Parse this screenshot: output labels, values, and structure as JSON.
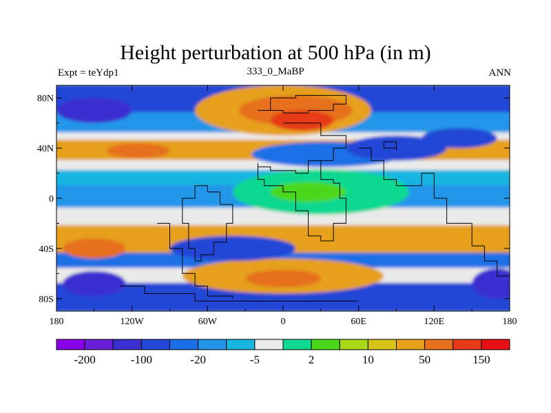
{
  "chart_data": {
    "type": "heatmap",
    "title": "Height perturbation at 500 hPa (in m)",
    "left_string": "Expt = teYdp1",
    "center_string": "333_0_MaBP",
    "right_string": "ANN",
    "x_ticks": [
      {
        "value": -180,
        "label": "180"
      },
      {
        "value": -120,
        "label": "120W"
      },
      {
        "value": -60,
        "label": "60W"
      },
      {
        "value": 0,
        "label": "0"
      },
      {
        "value": 60,
        "label": "60E"
      },
      {
        "value": 120,
        "label": "120E"
      },
      {
        "value": 180,
        "label": "180"
      }
    ],
    "y_ticks": [
      {
        "value": 80,
        "label": "80N"
      },
      {
        "value": 40,
        "label": "40N"
      },
      {
        "value": 0,
        "label": "0"
      },
      {
        "value": -40,
        "label": "40S"
      },
      {
        "value": -80,
        "label": "80S"
      }
    ],
    "xlim": [
      -180,
      180
    ],
    "ylim": [
      -90,
      90
    ],
    "colorbar": {
      "colors": [
        "#8a00e6",
        "#6a1fd8",
        "#3b2fd0",
        "#2347d6",
        "#1b6fe6",
        "#2196e8",
        "#17b6e0",
        "#eaeaea",
        "#10d890",
        "#4bd81a",
        "#a8d818",
        "#d8c418",
        "#e6a01a",
        "#e6701c",
        "#e63a18",
        "#e60f12"
      ],
      "labels": [
        {
          "boundary": 1,
          "text": "-200"
        },
        {
          "boundary": 3,
          "text": "-100"
        },
        {
          "boundary": 5,
          "text": "-20"
        },
        {
          "boundary": 7,
          "text": "-5"
        },
        {
          "boundary": 9,
          "text": "2"
        },
        {
          "boundary": 11,
          "text": "10"
        },
        {
          "boundary": 13,
          "text": "50"
        },
        {
          "boundary": 15,
          "text": "150"
        }
      ]
    },
    "bands": [
      {
        "lat_top": 90,
        "lat_bot": 68,
        "level": 3
      },
      {
        "lat_top": 68,
        "lat_bot": 52,
        "level": 5
      },
      {
        "lat_top": 52,
        "lat_bot": 46,
        "level": 7
      },
      {
        "lat_top": 46,
        "lat_bot": 30,
        "level": 12
      },
      {
        "lat_top": 30,
        "lat_bot": 22,
        "level": 7
      },
      {
        "lat_top": 22,
        "lat_bot": 10,
        "level": 6
      },
      {
        "lat_top": 10,
        "lat_bot": -8,
        "level": 5
      },
      {
        "lat_top": -8,
        "lat_bot": -22,
        "level": 7
      },
      {
        "lat_top": -22,
        "lat_bot": -44,
        "level": 12
      },
      {
        "lat_top": -44,
        "lat_bot": -56,
        "level": 4
      },
      {
        "lat_top": -56,
        "lat_bot": -68,
        "level": 7
      },
      {
        "lat_top": -68,
        "lat_bot": -90,
        "level": 3
      }
    ],
    "blobs": [
      {
        "lon": 0,
        "lat": 70,
        "rx": 70,
        "ry": 20,
        "level": 12
      },
      {
        "lon": 10,
        "lat": 70,
        "rx": 45,
        "ry": 12,
        "level": 13
      },
      {
        "lon": 15,
        "lat": 62,
        "rx": 25,
        "ry": 8,
        "level": 14
      },
      {
        "lon": 35,
        "lat": 35,
        "rx": 60,
        "ry": 10,
        "level": 4
      },
      {
        "lon": 90,
        "lat": 40,
        "rx": 40,
        "ry": 10,
        "level": 3
      },
      {
        "lon": -115,
        "lat": 38,
        "rx": 25,
        "ry": 6,
        "level": 13
      },
      {
        "lon": 30,
        "lat": 5,
        "rx": 70,
        "ry": 18,
        "level": 8
      },
      {
        "lon": 20,
        "lat": 5,
        "rx": 30,
        "ry": 8,
        "level": 9
      },
      {
        "lon": 0,
        "lat": -62,
        "rx": 80,
        "ry": 14,
        "level": 12
      },
      {
        "lon": 0,
        "lat": -64,
        "rx": 30,
        "ry": 7,
        "level": 13
      },
      {
        "lon": -150,
        "lat": -40,
        "rx": 25,
        "ry": 8,
        "level": 13
      },
      {
        "lon": -150,
        "lat": -68,
        "rx": 25,
        "ry": 10,
        "level": 2
      },
      {
        "lon": 170,
        "lat": -68,
        "rx": 20,
        "ry": 12,
        "level": 2
      },
      {
        "lon": 140,
        "lat": 48,
        "rx": 30,
        "ry": 8,
        "level": 3
      },
      {
        "lon": -150,
        "lat": 70,
        "rx": 30,
        "ry": 10,
        "level": 2
      },
      {
        "lon": -40,
        "lat": -40,
        "rx": 50,
        "ry": 10,
        "level": 3
      }
    ],
    "coastline_segments": [
      [
        [
          0,
          60
        ],
        [
          30,
          60
        ],
        [
          30,
          50
        ],
        [
          50,
          50
        ],
        [
          50,
          40
        ],
        [
          40,
          30
        ],
        [
          20,
          20
        ],
        [
          10,
          22
        ],
        [
          -10,
          25
        ],
        [
          -20,
          28
        ],
        [
          -20,
          15
        ],
        [
          -15,
          10
        ],
        [
          0,
          5
        ],
        [
          10,
          0
        ],
        [
          10,
          -10
        ],
        [
          20,
          -30
        ],
        [
          30,
          -34
        ],
        [
          40,
          -20
        ],
        [
          50,
          0
        ],
        [
          45,
          12
        ],
        [
          40,
          15
        ],
        [
          30,
          30
        ]
      ],
      [
        [
          60,
          40
        ],
        [
          70,
          30
        ],
        [
          80,
          15
        ],
        [
          90,
          10
        ],
        [
          100,
          10
        ],
        [
          110,
          20
        ],
        [
          120,
          0
        ],
        [
          130,
          -20
        ],
        [
          150,
          -38
        ],
        [
          160,
          -50
        ],
        [
          170,
          -62
        ],
        [
          180,
          -70
        ]
      ],
      [
        [
          -100,
          -20
        ],
        [
          -90,
          -40
        ],
        [
          -80,
          -60
        ],
        [
          -70,
          -70
        ],
        [
          -60,
          -78
        ],
        [
          -40,
          -80
        ]
      ],
      [
        [
          -60,
          5
        ],
        [
          -50,
          -5
        ],
        [
          -40,
          -20
        ],
        [
          -45,
          -35
        ],
        [
          -55,
          -45
        ],
        [
          -65,
          -50
        ],
        [
          -70,
          -40
        ],
        [
          -75,
          -20
        ],
        [
          -80,
          0
        ],
        [
          -70,
          10
        ],
        [
          -60,
          5
        ]
      ],
      [
        [
          -130,
          -70
        ],
        [
          -110,
          -76
        ],
        [
          -70,
          -82
        ],
        [
          -20,
          -82
        ],
        [
          20,
          -82
        ],
        [
          60,
          -82
        ]
      ],
      [
        [
          80,
          40
        ],
        [
          90,
          38
        ],
        [
          90,
          45
        ],
        [
          80,
          45
        ],
        [
          80,
          40
        ]
      ],
      [
        [
          -20,
          70
        ],
        [
          -10,
          80
        ],
        [
          10,
          82
        ],
        [
          40,
          82
        ],
        [
          50,
          75
        ],
        [
          40,
          70
        ],
        [
          20,
          68
        ],
        [
          0,
          70
        ],
        [
          -20,
          70
        ]
      ]
    ]
  }
}
